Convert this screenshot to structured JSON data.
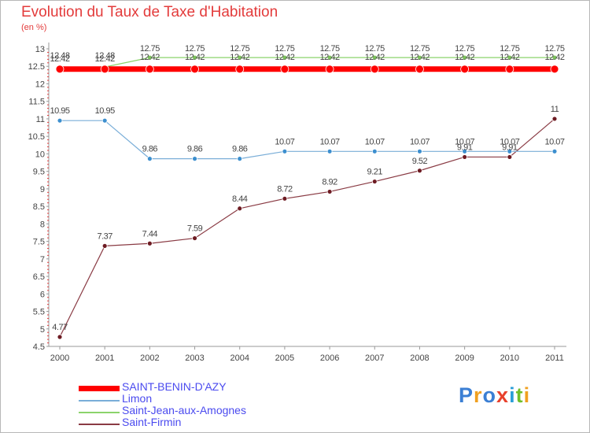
{
  "title": "Evolution du Taux de Taxe d'Habitation",
  "subtitle": "(en %)",
  "logo": {
    "text": "Proxiti",
    "letters": [
      "P",
      "r",
      "o",
      "x",
      "i",
      "t",
      "i"
    ],
    "colors": [
      "#3b7fd4",
      "#f0a020",
      "#3b7fd4",
      "#e8412c",
      "#2a9ed8",
      "#6fbf2a",
      "#f0a020"
    ]
  },
  "chart_data": {
    "type": "line",
    "title": "Evolution du Taux de Taxe d'Habitation",
    "ylabel": "(en %)",
    "xlabel": "",
    "ylim": [
      4.5,
      13
    ],
    "yticks": [
      4.5,
      5,
      5.5,
      6,
      6.5,
      7,
      7.5,
      8,
      8.5,
      9,
      9.5,
      10,
      10.5,
      11,
      11.5,
      12,
      12.5,
      13
    ],
    "categories": [
      "2000",
      "2001",
      "2002",
      "2003",
      "2004",
      "2005",
      "2006",
      "2007",
      "2008",
      "2009",
      "2010",
      "2011"
    ],
    "grid": false,
    "legend_position": "bottom-left",
    "series": [
      {
        "name": "Saint-Jean-aux-Amognes",
        "color": "#8bd36b",
        "marker": "#7cc25a",
        "line_width": 1.2,
        "marker_r": 3,
        "values": [
          12.48,
          12.48,
          12.75,
          12.75,
          12.75,
          12.75,
          12.75,
          12.75,
          12.75,
          12.75,
          12.75,
          12.75
        ]
      },
      {
        "name": "Saint-Firmin",
        "color": "#8a3b44",
        "marker": "#6e1c23",
        "line_width": 1.2,
        "marker_r": 3,
        "values": [
          4.77,
          7.37,
          7.44,
          7.59,
          8.44,
          8.72,
          8.92,
          9.21,
          9.52,
          9.91,
          9.91,
          11.0
        ]
      },
      {
        "name": "Limon",
        "color": "#7aaed8",
        "marker": "#3c8fcf",
        "line_width": 1.2,
        "marker_r": 3,
        "values": [
          10.95,
          10.95,
          9.86,
          9.86,
          9.86,
          10.07,
          10.07,
          10.07,
          10.07,
          10.07,
          10.07,
          10.07
        ]
      },
      {
        "name": "SAINT-BENIN-D'AZY",
        "color": "#ff0000",
        "marker": "#ff0000",
        "line_width": 7,
        "marker_r": 5,
        "values": [
          12.42,
          12.42,
          12.42,
          12.42,
          12.42,
          12.42,
          12.42,
          12.42,
          12.42,
          12.42,
          12.42,
          12.42
        ]
      }
    ],
    "data_labels": {
      "Saint-Jean-aux-Amognes": [
        "12.48",
        "12.48",
        "12.75",
        "12.75",
        "12.75",
        "12.75",
        "12.75",
        "12.75",
        "12.75",
        "12.75",
        "12.75",
        "12.75"
      ],
      "SAINT-BENIN-D'AZY": [
        "12.42",
        "12.42",
        "12.42",
        "12.42",
        "12.42",
        "12.42",
        "12.42",
        "12.42",
        "12.42",
        "12.42",
        "12.42",
        "12.42"
      ],
      "Limon": [
        "10.95",
        "10.95",
        "9.86",
        "9.86",
        "9.86",
        "10.07",
        "10.07",
        "10.07",
        "10.07",
        "10.07",
        "10.07",
        "10.07"
      ],
      "Saint-Firmin": [
        "4.77",
        "7.37",
        "7.44",
        "7.59",
        "8.44",
        "8.72",
        "8.92",
        "9.21",
        "9.52",
        "9.91",
        "9.91",
        "11"
      ]
    },
    "legend": [
      {
        "name": "SAINT-BENIN-D'AZY",
        "color": "#ff0000",
        "weight": "thick"
      },
      {
        "name": "Limon",
        "color": "#7aaed8",
        "weight": "thin"
      },
      {
        "name": "Saint-Jean-aux-Amognes",
        "color": "#8bd36b",
        "weight": "thin"
      },
      {
        "name": "Saint-Firmin",
        "color": "#8a3b44",
        "weight": "thin"
      }
    ]
  }
}
